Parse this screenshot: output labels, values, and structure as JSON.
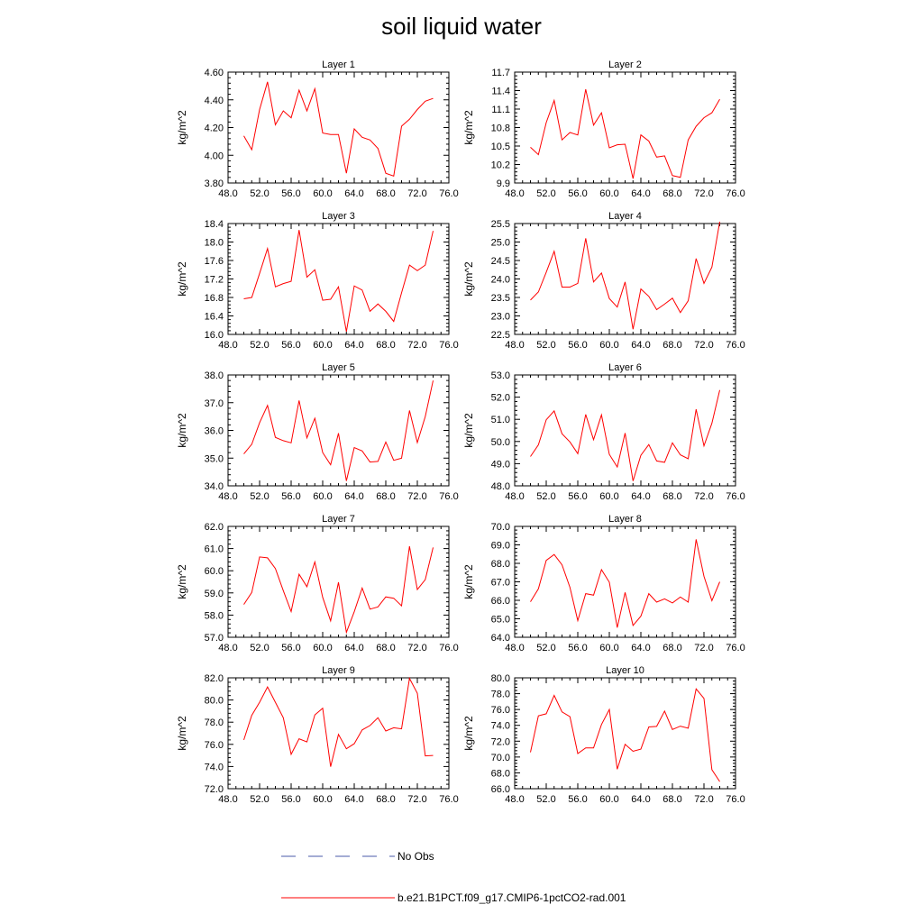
{
  "title": "soil liquid water",
  "colors": {
    "model_line": "#ff0000",
    "obs_line": "#4a5aa8",
    "axis": "#000000"
  },
  "legend": {
    "obs_label": "No Obs",
    "model_label": "b.e21.B1PCT.f09_g17.CMIP6-1pctCO2-rad.001"
  },
  "chart_data": [
    {
      "type": "line",
      "title": "Layer 1",
      "ylabel": "kg/m^2",
      "xlim": [
        48,
        76
      ],
      "ylim": [
        3.8,
        4.6
      ],
      "xticks": [
        "48.0",
        "52.0",
        "56.0",
        "60.0",
        "64.0",
        "68.0",
        "72.0",
        "76.0"
      ],
      "yticks": [
        "3.80",
        "4.00",
        "4.20",
        "4.40",
        "4.60"
      ],
      "x": [
        50,
        51,
        52,
        53,
        54,
        55,
        56,
        57,
        58,
        59,
        60,
        61,
        62,
        63,
        64,
        65,
        66,
        67,
        68,
        69,
        70,
        71,
        72,
        73,
        74
      ],
      "series": [
        {
          "name": "b.e21.B1PCT.f09_g17.CMIP6-1pctCO2-rad.001",
          "values": [
            4.14,
            4.04,
            4.33,
            4.53,
            4.22,
            4.32,
            4.27,
            4.47,
            4.32,
            4.48,
            4.16,
            4.15,
            4.15,
            3.87,
            4.19,
            4.13,
            4.11,
            4.05,
            3.87,
            3.85,
            4.21,
            4.26,
            4.33,
            4.39,
            4.41
          ]
        }
      ]
    },
    {
      "type": "line",
      "title": "Layer 2",
      "ylabel": "kg/m^2",
      "xlim": [
        48,
        76
      ],
      "ylim": [
        9.9,
        11.7
      ],
      "xticks": [
        "48.0",
        "52.0",
        "56.0",
        "60.0",
        "64.0",
        "68.0",
        "72.0",
        "76.0"
      ],
      "yticks": [
        "9.9",
        "10.2",
        "10.5",
        "10.8",
        "11.1",
        "11.4",
        "11.7"
      ],
      "x": [
        50,
        51,
        52,
        53,
        54,
        55,
        56,
        57,
        58,
        59,
        60,
        61,
        62,
        63,
        64,
        65,
        66,
        67,
        68,
        69,
        70,
        71,
        72,
        73,
        74
      ],
      "series": [
        {
          "name": "b.e21.B1PCT.f09_g17.CMIP6-1pctCO2-rad.001",
          "values": [
            10.48,
            10.36,
            10.88,
            11.24,
            10.6,
            10.72,
            10.68,
            11.42,
            10.84,
            11.04,
            10.47,
            10.52,
            10.53,
            9.97,
            10.68,
            10.58,
            10.32,
            10.34,
            10.02,
            9.99,
            10.6,
            10.82,
            10.96,
            11.04,
            11.26
          ]
        }
      ]
    },
    {
      "type": "line",
      "title": "Layer 3",
      "ylabel": "kg/m^2",
      "xlim": [
        48,
        76
      ],
      "ylim": [
        16.0,
        18.4
      ],
      "xticks": [
        "48.0",
        "52.0",
        "56.0",
        "60.0",
        "64.0",
        "68.0",
        "72.0",
        "76.0"
      ],
      "yticks": [
        "16.0",
        "16.4",
        "16.8",
        "17.2",
        "17.6",
        "18.0",
        "18.4"
      ],
      "x": [
        50,
        51,
        52,
        53,
        54,
        55,
        56,
        57,
        58,
        59,
        60,
        61,
        62,
        63,
        64,
        65,
        66,
        67,
        68,
        69,
        70,
        71,
        72,
        73,
        74
      ],
      "series": [
        {
          "name": "b.e21.B1PCT.f09_g17.CMIP6-1pctCO2-rad.001",
          "values": [
            16.77,
            16.8,
            17.32,
            17.86,
            17.03,
            17.1,
            17.15,
            18.26,
            17.24,
            17.4,
            16.74,
            16.76,
            17.03,
            16.06,
            17.05,
            16.96,
            16.5,
            16.66,
            16.5,
            16.28,
            16.9,
            17.5,
            17.38,
            17.5,
            18.24
          ]
        }
      ]
    },
    {
      "type": "line",
      "title": "Layer 4",
      "ylabel": "kg/m^2",
      "xlim": [
        48,
        76
      ],
      "ylim": [
        22.5,
        25.5
      ],
      "xticks": [
        "48.0",
        "52.0",
        "56.0",
        "60.0",
        "64.0",
        "68.0",
        "72.0",
        "76.0"
      ],
      "yticks": [
        "22.5",
        "23.0",
        "23.5",
        "24.0",
        "24.5",
        "25.0",
        "25.5"
      ],
      "x": [
        50,
        51,
        52,
        53,
        54,
        55,
        56,
        57,
        58,
        59,
        60,
        61,
        62,
        63,
        64,
        65,
        66,
        67,
        68,
        69,
        70,
        71,
        72,
        73,
        74
      ],
      "series": [
        {
          "name": "b.e21.B1PCT.f09_g17.CMIP6-1pctCO2-rad.001",
          "values": [
            23.43,
            23.65,
            24.18,
            24.75,
            23.78,
            23.78,
            23.88,
            25.1,
            23.92,
            24.16,
            23.47,
            23.24,
            23.92,
            22.64,
            23.73,
            23.53,
            23.17,
            23.32,
            23.48,
            23.09,
            23.41,
            24.55,
            23.88,
            24.32,
            25.55
          ]
        }
      ]
    },
    {
      "type": "line",
      "title": "Layer 5",
      "ylabel": "kg/m^2",
      "xlim": [
        48,
        76
      ],
      "ylim": [
        34.0,
        38.0
      ],
      "xticks": [
        "48.0",
        "52.0",
        "56.0",
        "60.0",
        "64.0",
        "68.0",
        "72.0",
        "76.0"
      ],
      "yticks": [
        "34.0",
        "35.0",
        "36.0",
        "37.0",
        "38.0"
      ],
      "x": [
        50,
        51,
        52,
        53,
        54,
        55,
        56,
        57,
        58,
        59,
        60,
        61,
        62,
        63,
        64,
        65,
        66,
        67,
        68,
        69,
        70,
        71,
        72,
        73,
        74
      ],
      "series": [
        {
          "name": "b.e21.B1PCT.f09_g17.CMIP6-1pctCO2-rad.001",
          "values": [
            35.15,
            35.5,
            36.28,
            36.9,
            35.75,
            35.63,
            35.55,
            37.08,
            35.73,
            36.44,
            35.2,
            34.76,
            35.9,
            34.18,
            35.38,
            35.26,
            34.86,
            34.88,
            35.58,
            34.92,
            35.0,
            36.72,
            35.56,
            36.5,
            37.8
          ]
        }
      ]
    },
    {
      "type": "line",
      "title": "Layer 6",
      "ylabel": "kg/m^2",
      "xlim": [
        48,
        76
      ],
      "ylim": [
        48.0,
        53.0
      ],
      "xticks": [
        "48.0",
        "52.0",
        "56.0",
        "60.0",
        "64.0",
        "68.0",
        "72.0",
        "76.0"
      ],
      "yticks": [
        "48.0",
        "49.0",
        "50.0",
        "51.0",
        "52.0",
        "53.0"
      ],
      "x": [
        50,
        51,
        52,
        53,
        54,
        55,
        56,
        57,
        58,
        59,
        60,
        61,
        62,
        63,
        64,
        65,
        66,
        67,
        68,
        69,
        70,
        71,
        72,
        73,
        74
      ],
      "series": [
        {
          "name": "b.e21.B1PCT.f09_g17.CMIP6-1pctCO2-rad.001",
          "values": [
            49.32,
            49.85,
            50.98,
            51.38,
            50.35,
            49.98,
            49.45,
            51.22,
            50.08,
            51.2,
            49.42,
            48.85,
            50.38,
            48.22,
            49.38,
            49.86,
            49.12,
            49.06,
            49.94,
            49.4,
            49.22,
            51.45,
            49.8,
            50.82,
            52.32
          ]
        }
      ]
    },
    {
      "type": "line",
      "title": "Layer 7",
      "ylabel": "kg/m^2",
      "xlim": [
        48,
        76
      ],
      "ylim": [
        57.0,
        62.0
      ],
      "xticks": [
        "48.0",
        "52.0",
        "56.0",
        "60.0",
        "64.0",
        "68.0",
        "72.0",
        "76.0"
      ],
      "yticks": [
        "57.0",
        "58.0",
        "59.0",
        "60.0",
        "61.0",
        "62.0"
      ],
      "x": [
        50,
        51,
        52,
        53,
        54,
        55,
        56,
        57,
        58,
        59,
        60,
        61,
        62,
        63,
        64,
        65,
        66,
        67,
        68,
        69,
        70,
        71,
        72,
        73,
        74
      ],
      "series": [
        {
          "name": "b.e21.B1PCT.f09_g17.CMIP6-1pctCO2-rad.001",
          "values": [
            58.48,
            59.02,
            60.62,
            60.58,
            60.1,
            59.1,
            58.16,
            59.84,
            59.28,
            60.4,
            58.8,
            57.74,
            59.48,
            57.22,
            58.15,
            59.22,
            58.27,
            58.37,
            58.82,
            58.76,
            58.42,
            61.1,
            59.15,
            59.6,
            61.05
          ]
        }
      ]
    },
    {
      "type": "line",
      "title": "Layer 8",
      "ylabel": "kg/m^2",
      "xlim": [
        48,
        76
      ],
      "ylim": [
        64.0,
        70.0
      ],
      "xticks": [
        "48.0",
        "52.0",
        "56.0",
        "60.0",
        "64.0",
        "68.0",
        "72.0",
        "76.0"
      ],
      "yticks": [
        "64.0",
        "65.0",
        "66.0",
        "67.0",
        "68.0",
        "69.0",
        "70.0"
      ],
      "x": [
        50,
        51,
        52,
        53,
        54,
        55,
        56,
        57,
        58,
        59,
        60,
        61,
        62,
        63,
        64,
        65,
        66,
        67,
        68,
        69,
        70,
        71,
        72,
        73,
        74
      ],
      "series": [
        {
          "name": "b.e21.B1PCT.f09_g17.CMIP6-1pctCO2-rad.001",
          "values": [
            65.92,
            66.62,
            68.16,
            68.48,
            67.92,
            66.7,
            64.9,
            66.36,
            66.28,
            67.66,
            66.98,
            64.52,
            66.43,
            64.64,
            65.14,
            66.36,
            65.9,
            66.08,
            65.86,
            66.18,
            65.9,
            69.3,
            67.3,
            65.98,
            67.0
          ]
        }
      ]
    },
    {
      "type": "line",
      "title": "Layer 9",
      "ylabel": "kg/m^2",
      "xlim": [
        48,
        76
      ],
      "ylim": [
        72.0,
        82.0
      ],
      "xticks": [
        "48.0",
        "52.0",
        "56.0",
        "60.0",
        "64.0",
        "68.0",
        "72.0",
        "76.0"
      ],
      "yticks": [
        "72.0",
        "74.0",
        "76.0",
        "78.0",
        "80.0",
        "82.0"
      ],
      "x": [
        50,
        51,
        52,
        53,
        54,
        55,
        56,
        57,
        58,
        59,
        60,
        61,
        62,
        63,
        64,
        65,
        66,
        67,
        68,
        69,
        70,
        71,
        72,
        73,
        74
      ],
      "series": [
        {
          "name": "b.e21.B1PCT.f09_g17.CMIP6-1pctCO2-rad.001",
          "values": [
            76.4,
            78.62,
            79.8,
            81.18,
            79.8,
            78.4,
            75.1,
            76.5,
            76.22,
            78.66,
            79.26,
            73.98,
            76.9,
            75.6,
            76.06,
            77.3,
            77.7,
            78.4,
            77.2,
            77.5,
            77.4,
            81.95,
            80.6,
            74.96,
            75.0
          ]
        }
      ]
    },
    {
      "type": "line",
      "title": "Layer 10",
      "ylabel": "kg/m^2",
      "xlim": [
        48,
        76
      ],
      "ylim": [
        66.0,
        80.0
      ],
      "xticks": [
        "48.0",
        "52.0",
        "56.0",
        "60.0",
        "64.0",
        "68.0",
        "72.0",
        "76.0"
      ],
      "yticks": [
        "66.0",
        "68.0",
        "70.0",
        "72.0",
        "74.0",
        "76.0",
        "78.0",
        "80.0"
      ],
      "x": [
        50,
        51,
        52,
        53,
        54,
        55,
        56,
        57,
        58,
        59,
        60,
        61,
        62,
        63,
        64,
        65,
        66,
        67,
        68,
        69,
        70,
        71,
        72,
        73,
        74
      ],
      "series": [
        {
          "name": "b.e21.B1PCT.f09_g17.CMIP6-1pctCO2-rad.001",
          "values": [
            70.6,
            75.2,
            75.46,
            77.78,
            75.7,
            75.1,
            70.44,
            71.16,
            71.14,
            74.1,
            76.0,
            68.46,
            71.6,
            70.72,
            71.0,
            73.8,
            73.86,
            75.8,
            73.48,
            73.9,
            73.64,
            78.6,
            77.4,
            68.4,
            66.9
          ]
        }
      ]
    }
  ]
}
